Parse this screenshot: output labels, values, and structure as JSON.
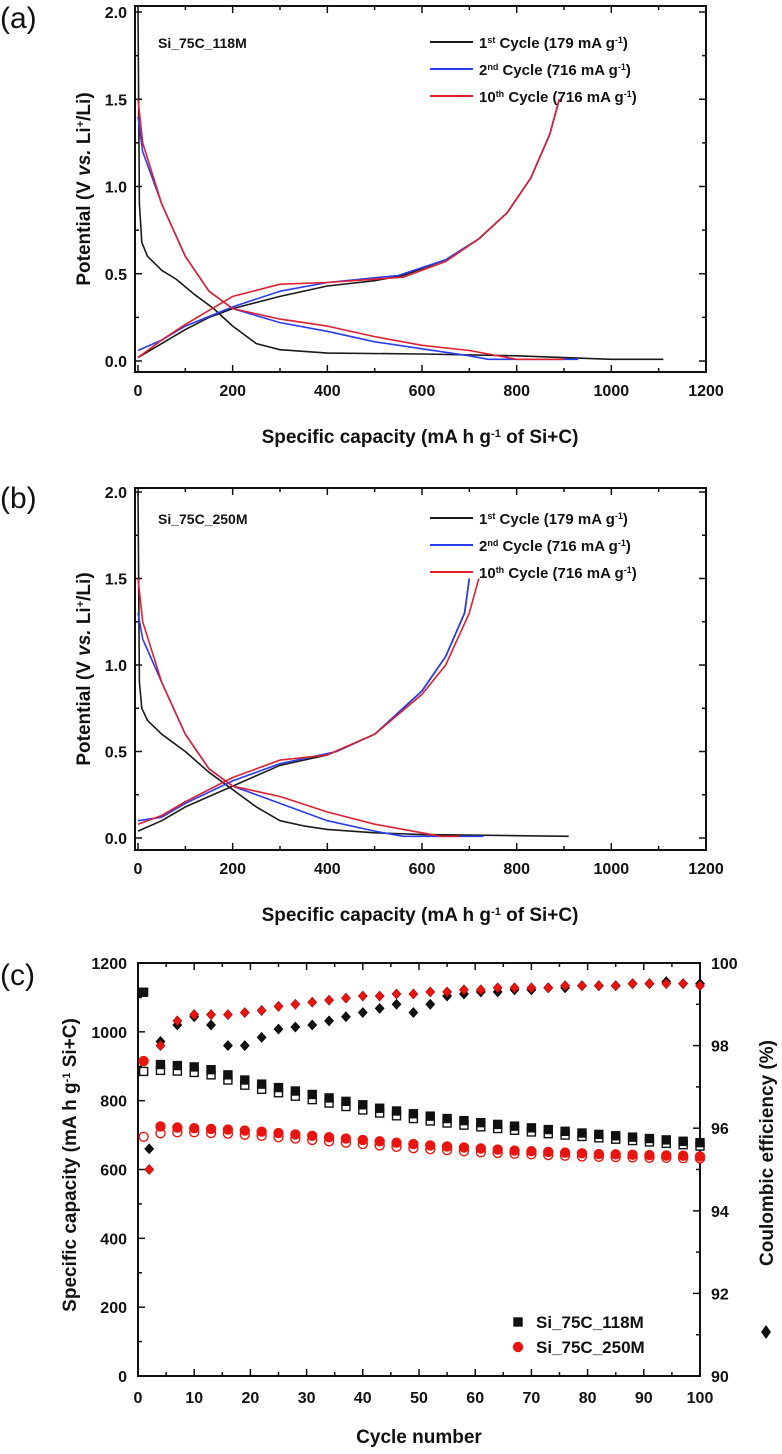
{
  "chart_data": [
    {
      "type": "line",
      "panel_label": "(a)",
      "annotation": "Si_75C_118M",
      "xlabel": {
        "main": "Specific capacity (mA h g",
        "sup": "-1",
        "tail": " of Si+C)"
      },
      "ylabel": {
        "main": "Potential (V ",
        "italic": "vs.",
        "mid": " Li",
        "sup": "+",
        "tail": "/Li)"
      },
      "xlim": [
        0,
        1200
      ],
      "ylim": [
        0,
        2.0
      ],
      "xticks": [
        0,
        200,
        400,
        600,
        800,
        1000,
        1200
      ],
      "yticks": [
        "0.0",
        "0.5",
        "1.0",
        "1.5",
        "2.0"
      ],
      "legend_position": "top-right",
      "series": [
        {
          "num": "1",
          "sup": "st",
          "label": " Cycle (179 mA g",
          "sup2": "-1",
          "tail": ")",
          "color": "#1a1a1a",
          "discharge": {
            "x": [
              0,
              3,
              8,
              20,
              50,
              80,
              120,
              160,
              200,
              250,
              300,
              400,
              600,
              800,
              1000,
              1110
            ],
            "y": [
              2.0,
              0.9,
              0.68,
              0.6,
              0.52,
              0.47,
              0.38,
              0.3,
              0.2,
              0.1,
              0.065,
              0.045,
              0.04,
              0.03,
              0.01,
              0.01
            ]
          },
          "charge": {
            "x": [
              0,
              50,
              100,
              150,
              200,
              300,
              400,
              500,
              560,
              650,
              720,
              780,
              830,
              870,
              890
            ],
            "y": [
              0.02,
              0.1,
              0.18,
              0.25,
              0.3,
              0.37,
              0.43,
              0.46,
              0.49,
              0.58,
              0.7,
              0.85,
              1.05,
              1.3,
              1.5
            ]
          }
        },
        {
          "num": "2",
          "sup": "nd",
          "label": " Cycle (716 mA g",
          "sup2": "-1",
          "tail": ")",
          "color": "#2a3cf0",
          "discharge": {
            "x": [
              0,
              10,
              50,
              100,
              150,
              200,
              300,
              400,
              500,
              600,
              700,
              740,
              930
            ],
            "y": [
              1.4,
              1.2,
              0.9,
              0.6,
              0.4,
              0.3,
              0.22,
              0.17,
              0.11,
              0.07,
              0.03,
              0.01,
              0.01
            ]
          },
          "charge": {
            "x": [
              0,
              50,
              100,
              200,
              300,
              400,
              550,
              650,
              720,
              780,
              830,
              870,
              890
            ],
            "y": [
              0.06,
              0.12,
              0.2,
              0.31,
              0.4,
              0.45,
              0.49,
              0.58,
              0.7,
              0.85,
              1.05,
              1.3,
              1.5
            ]
          }
        },
        {
          "num": "10",
          "sup": "th",
          "label": " Cycle (716 mA g",
          "sup2": "-1",
          "tail": ")",
          "color": "#e02030",
          "discharge": {
            "x": [
              0,
              10,
              50,
              100,
              150,
              200,
              300,
              400,
              500,
              600,
              700,
              800,
              900
            ],
            "y": [
              1.5,
              1.25,
              0.9,
              0.6,
              0.4,
              0.3,
              0.24,
              0.2,
              0.14,
              0.09,
              0.06,
              0.01,
              0.01
            ]
          },
          "charge": {
            "x": [
              0,
              50,
              100,
              200,
              300,
              400,
              560,
              650,
              720,
              780,
              830,
              870,
              890
            ],
            "y": [
              0.02,
              0.12,
              0.21,
              0.37,
              0.44,
              0.45,
              0.48,
              0.57,
              0.7,
              0.85,
              1.05,
              1.3,
              1.5
            ]
          }
        }
      ]
    },
    {
      "type": "line",
      "panel_label": "(b)",
      "annotation": "Si_75C_250M",
      "xlabel": {
        "main": "Specific capacity (mA h g",
        "sup": "-1",
        "tail": " of Si+C)"
      },
      "ylabel": {
        "main": "Potential (V ",
        "italic": "vs.",
        "mid": " Li",
        "sup": "+",
        "tail": "/Li)"
      },
      "xlim": [
        0,
        1200
      ],
      "ylim": [
        0,
        2.0
      ],
      "xticks": [
        0,
        200,
        400,
        600,
        800,
        1000,
        1200
      ],
      "yticks": [
        "0.0",
        "0.5",
        "1.0",
        "1.5",
        "2.0"
      ],
      "legend_position": "top-right",
      "series": [
        {
          "num": "1",
          "sup": "st",
          "label": " Cycle (179 mA g",
          "sup2": "-1",
          "tail": ")",
          "color": "#1a1a1a",
          "discharge": {
            "x": [
              0,
              3,
              8,
              20,
              50,
              100,
              150,
              200,
              250,
              300,
              350,
              400,
              500,
              600,
              910
            ],
            "y": [
              2.0,
              0.9,
              0.75,
              0.68,
              0.6,
              0.5,
              0.38,
              0.28,
              0.18,
              0.1,
              0.07,
              0.05,
              0.03,
              0.02,
              0.01
            ]
          },
          "charge": {
            "x": [
              0,
              50,
              100,
              200,
              300,
              400,
              500,
              600,
              650,
              690,
              700
            ],
            "y": [
              0.04,
              0.1,
              0.18,
              0.3,
              0.42,
              0.48,
              0.6,
              0.85,
              1.05,
              1.3,
              1.5
            ]
          }
        },
        {
          "num": "2",
          "sup": "nd",
          "label": " Cycle (716 mA g",
          "sup2": "-1",
          "tail": ")",
          "color": "#2a3cf0",
          "discharge": {
            "x": [
              0,
              10,
              50,
              100,
              150,
              200,
              300,
              400,
              500,
              560,
              730
            ],
            "y": [
              1.3,
              1.15,
              0.9,
              0.6,
              0.4,
              0.3,
              0.2,
              0.1,
              0.04,
              0.01,
              0.01
            ]
          },
          "charge": {
            "x": [
              0,
              50,
              100,
              200,
              300,
              420,
              500,
              600,
              650,
              690,
              700
            ],
            "y": [
              0.1,
              0.12,
              0.2,
              0.33,
              0.43,
              0.5,
              0.6,
              0.85,
              1.05,
              1.3,
              1.5
            ]
          }
        },
        {
          "num": "10",
          "sup": "th",
          "label": " Cycle (716 mA g",
          "sup2": "-1",
          "tail": ")",
          "color": "#e02030",
          "discharge": {
            "x": [
              0,
              10,
              50,
              100,
              150,
              200,
              300,
              400,
              500,
              640,
              680
            ],
            "y": [
              1.5,
              1.25,
              0.9,
              0.6,
              0.4,
              0.3,
              0.24,
              0.15,
              0.08,
              0.01,
              0.01
            ]
          },
          "charge": {
            "x": [
              0,
              50,
              100,
              200,
              300,
              400,
              500,
              600,
              650,
              700,
              720
            ],
            "y": [
              0.08,
              0.13,
              0.21,
              0.35,
              0.45,
              0.48,
              0.6,
              0.83,
              1.0,
              1.3,
              1.5
            ]
          }
        }
      ]
    },
    {
      "type": "scatter",
      "panel_label": "(c)",
      "xlabel": "Cycle number",
      "ylabel": {
        "main": "Specific capacity (mA h g",
        "sup": "-1",
        "tail": " Si+C)"
      },
      "y2label": "Coulombic efficiency (%)",
      "xlim": [
        0,
        100
      ],
      "ylim": [
        0,
        1200
      ],
      "y2lim": [
        90,
        100
      ],
      "xticks": [
        0,
        10,
        20,
        30,
        40,
        50,
        60,
        70,
        80,
        90,
        100
      ],
      "yticks": [
        0,
        200,
        400,
        600,
        800,
        1000,
        1200
      ],
      "y2ticks": [
        90,
        92,
        94,
        96,
        98,
        100
      ],
      "legend_position": "bottom-right",
      "x": [
        1,
        4,
        7,
        10,
        13,
        16,
        19,
        22,
        25,
        28,
        31,
        34,
        37,
        40,
        43,
        46,
        49,
        52,
        55,
        58,
        61,
        64,
        67,
        70,
        73,
        76,
        79,
        82,
        85,
        88,
        91,
        94,
        97,
        100
      ],
      "series": [
        {
          "name": "Si_75C_118M",
          "color": "#111111",
          "marker": "square",
          "discharge": [
            1115,
            905,
            902,
            898,
            890,
            875,
            860,
            848,
            838,
            828,
            818,
            808,
            798,
            788,
            778,
            770,
            762,
            755,
            748,
            742,
            736,
            731,
            726,
            721,
            716,
            711,
            706,
            702,
            698,
            694,
            690,
            686,
            682,
            678
          ],
          "charge": [
            885,
            888,
            886,
            882,
            875,
            860,
            845,
            833,
            823,
            813,
            803,
            793,
            783,
            773,
            764,
            756,
            748,
            741,
            735,
            729,
            724,
            719,
            714,
            709,
            704,
            700,
            696,
            692,
            688,
            684,
            680,
            676,
            672,
            668
          ],
          "coulombic_efficiency": [
            95.5,
            98.1,
            98.5,
            98.7,
            98.5,
            98.0,
            98.0,
            98.2,
            98.4,
            98.45,
            98.5,
            98.6,
            98.7,
            98.8,
            98.9,
            99.0,
            98.8,
            99.0,
            99.2,
            99.25,
            99.3,
            99.3,
            99.35,
            99.35,
            99.4,
            99.4,
            99.45,
            99.45,
            99.45,
            99.5,
            99.5,
            99.55,
            99.5,
            99.5
          ]
        },
        {
          "name": "Si_75C_250M",
          "color": "#e8140f",
          "marker": "circle",
          "discharge": [
            915,
            725,
            722,
            720,
            718,
            716,
            713,
            710,
            706,
            702,
            698,
            694,
            690,
            686,
            682,
            678,
            674,
            670,
            667,
            664,
            661,
            658,
            655,
            653,
            651,
            649,
            647,
            645,
            644,
            643,
            642,
            641,
            640,
            638
          ],
          "charge": [
            695,
            705,
            708,
            708,
            706,
            704,
            701,
            698,
            694,
            690,
            686,
            682,
            678,
            674,
            670,
            666,
            662,
            659,
            656,
            653,
            650,
            648,
            646,
            644,
            642,
            640,
            638,
            637,
            636,
            635,
            634,
            634,
            633,
            632
          ],
          "coulombic_efficiency": [
            95.0,
            98.0,
            98.6,
            98.75,
            98.75,
            98.75,
            98.8,
            98.85,
            98.95,
            99.0,
            99.05,
            99.1,
            99.15,
            99.2,
            99.2,
            99.25,
            99.25,
            99.3,
            99.3,
            99.35,
            99.35,
            99.4,
            99.4,
            99.4,
            99.4,
            99.45,
            99.45,
            99.45,
            99.45,
            99.5,
            99.5,
            99.5,
            99.5,
            99.45
          ]
        }
      ]
    }
  ]
}
